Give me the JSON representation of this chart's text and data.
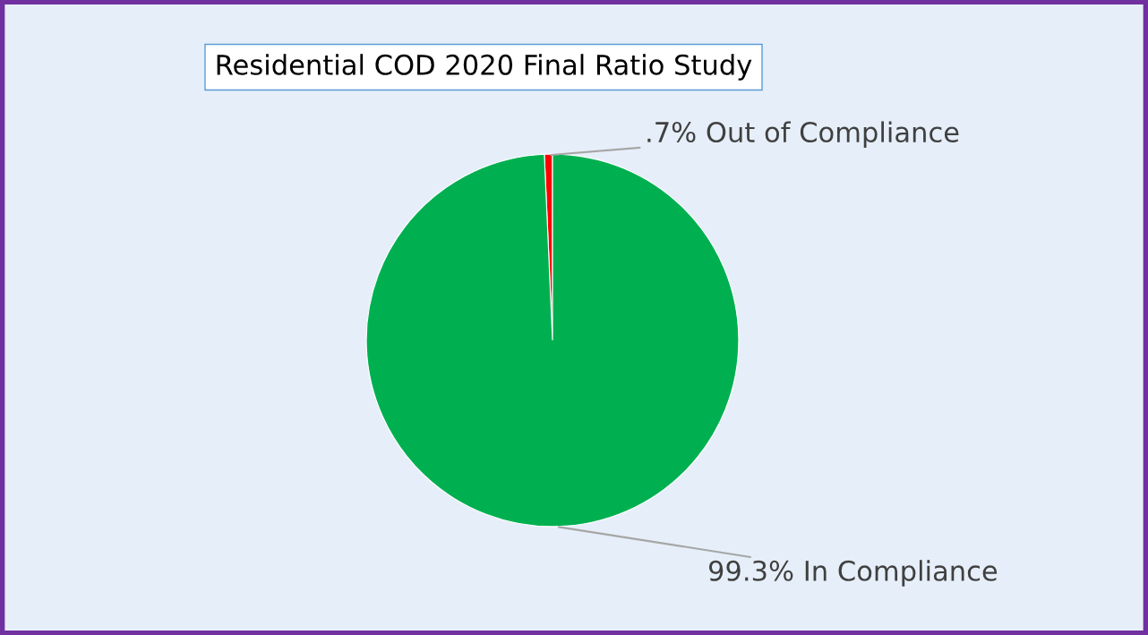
{
  "chart_data": {
    "type": "pie",
    "title": "Residential COD 2020 Final Ratio Study",
    "categories": [
      "Out of Compliance",
      "In Compliance"
    ],
    "values": [
      0.7,
      99.3
    ],
    "value_labels": [
      ".7%",
      "99.3%"
    ],
    "colors": [
      "#ff0000",
      "#00b050"
    ]
  }
}
